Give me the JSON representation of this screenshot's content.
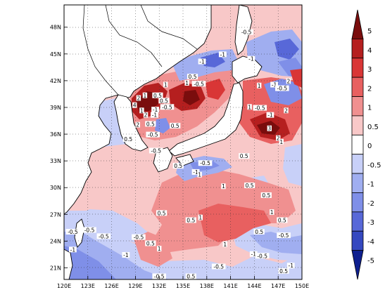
{
  "map": {
    "lon_ticks": [
      "120E",
      "123E",
      "126E",
      "129E",
      "132E",
      "135E",
      "138E",
      "141E",
      "144E",
      "147E",
      "150E"
    ],
    "lat_ticks": [
      "21N",
      "24N",
      "27N",
      "30N",
      "33N",
      "36N",
      "39N",
      "42N",
      "45N",
      "48N"
    ],
    "lon_range": [
      120,
      150
    ],
    "lat_range": [
      19.7,
      50.5
    ]
  },
  "colorbar": {
    "levels": [
      "5",
      "4",
      "3",
      "2",
      "1",
      "0.5",
      "0",
      "-0.5",
      "-1",
      "-2",
      "-3",
      "-4",
      "-5"
    ],
    "colors": [
      "#7a0d0d",
      "#b51f1f",
      "#d93636",
      "#e86060",
      "#f09090",
      "#f8c8c8",
      "#ffffff",
      "#c8d0f8",
      "#a0aef0",
      "#7f8fe8",
      "#5868d8",
      "#3548c0",
      "#0e1f8f"
    ]
  },
  "contour_labels": [
    {
      "text": "-0.5",
      "lon": 143.0,
      "lat": 47.3
    },
    {
      "text": "-1",
      "lon": 140.0,
      "lat": 44.8
    },
    {
      "text": "-1",
      "lon": 137.4,
      "lat": 44.0
    },
    {
      "text": "-1",
      "lon": 143.6,
      "lat": 44.3
    },
    {
      "text": "0.5",
      "lon": 136.2,
      "lat": 42.3
    },
    {
      "text": "1",
      "lon": 132.8,
      "lat": 41.4
    },
    {
      "text": "1",
      "lon": 135.5,
      "lat": 41.6
    },
    {
      "text": "-0.5",
      "lon": 137.0,
      "lat": 41.5
    },
    {
      "text": "1",
      "lon": 130.2,
      "lat": 40.2
    },
    {
      "text": "2",
      "lon": 129.4,
      "lat": 39.9
    },
    {
      "text": "0.5",
      "lon": 131.8,
      "lat": 40.2
    },
    {
      "text": "0.5",
      "lon": 132.6,
      "lat": 39.6
    },
    {
      "text": "-0.5",
      "lon": 133.0,
      "lat": 38.9
    },
    {
      "text": "-1",
      "lon": 131.5,
      "lat": 38.6
    },
    {
      "text": "4",
      "lon": 128.9,
      "lat": 39.1
    },
    {
      "text": "1",
      "lon": 129.8,
      "lat": 38.5
    },
    {
      "text": "2",
      "lon": 130.3,
      "lat": 38.0
    },
    {
      "text": "-1",
      "lon": 131.4,
      "lat": 38.0
    },
    {
      "text": "0.5",
      "lon": 130.9,
      "lat": 37.0
    },
    {
      "text": "0.5",
      "lon": 134.0,
      "lat": 36.8
    },
    {
      "text": "2",
      "lon": 129.3,
      "lat": 36.9
    },
    {
      "text": "-0.5",
      "lon": 131.2,
      "lat": 35.8
    },
    {
      "text": "0.5",
      "lon": 128.1,
      "lat": 35.3
    },
    {
      "text": "-0.5",
      "lon": 131.6,
      "lat": 34.0
    },
    {
      "text": "1",
      "lon": 144.6,
      "lat": 41.3
    },
    {
      "text": "-1",
      "lon": 146.5,
      "lat": 41.4
    },
    {
      "text": "2",
      "lon": 148.3,
      "lat": 41.8
    },
    {
      "text": "-0.5",
      "lon": 147.5,
      "lat": 41.0
    },
    {
      "text": "-0.5",
      "lon": 144.7,
      "lat": 38.8
    },
    {
      "text": "1",
      "lon": 143.4,
      "lat": 38.9
    },
    {
      "text": "-1",
      "lon": 146.0,
      "lat": 38.0
    },
    {
      "text": "2",
      "lon": 148.0,
      "lat": 38.5
    },
    {
      "text": "3",
      "lon": 145.9,
      "lat": 36.5
    },
    {
      "text": "2",
      "lon": 147.0,
      "lat": 35.4
    },
    {
      "text": "1",
      "lon": 147.4,
      "lat": 35.0
    },
    {
      "text": "0.5",
      "lon": 142.7,
      "lat": 33.4
    },
    {
      "text": "-0.5",
      "lon": 137.8,
      "lat": 32.6
    },
    {
      "text": "0.5",
      "lon": 134.4,
      "lat": 32.3
    },
    {
      "text": "-1",
      "lon": 136.6,
      "lat": 31.6
    },
    {
      "text": "1",
      "lon": 137.1,
      "lat": 31.3
    },
    {
      "text": "0.5",
      "lon": 143.4,
      "lat": 30.1
    },
    {
      "text": "1",
      "lon": 140.1,
      "lat": 30.0
    },
    {
      "text": "0.5",
      "lon": 145.5,
      "lat": 29.0
    },
    {
      "text": "1",
      "lon": 146.2,
      "lat": 27.1
    },
    {
      "text": "0.5",
      "lon": 132.3,
      "lat": 27.0
    },
    {
      "text": "0.5",
      "lon": 136.0,
      "lat": 26.2
    },
    {
      "text": "1",
      "lon": 137.2,
      "lat": 26.5
    },
    {
      "text": "0.5",
      "lon": 147.5,
      "lat": 26.2
    },
    {
      "text": "-0.5",
      "lon": 125.0,
      "lat": 24.4
    },
    {
      "text": "-0.5",
      "lon": 121.1,
      "lat": 24.9
    },
    {
      "text": "-0.5",
      "lon": 123.2,
      "lat": 25.1
    },
    {
      "text": "-0.5",
      "lon": 129.4,
      "lat": 24.3
    },
    {
      "text": "0.5",
      "lon": 130.9,
      "lat": 23.6
    },
    {
      "text": "1",
      "lon": 132.0,
      "lat": 23.0
    },
    {
      "text": "1",
      "lon": 140.3,
      "lat": 23.5
    },
    {
      "text": "0.5",
      "lon": 144.6,
      "lat": 24.9
    },
    {
      "text": "-0.5",
      "lon": 147.7,
      "lat": 24.5
    },
    {
      "text": "-1",
      "lon": 121.1,
      "lat": 22.9
    },
    {
      "text": "-1",
      "lon": 127.8,
      "lat": 22.3
    },
    {
      "text": "-0.5",
      "lon": 139.5,
      "lat": 21.0
    },
    {
      "text": "-1",
      "lon": 143.9,
      "lat": 22.4
    },
    {
      "text": "-0.5",
      "lon": 145.0,
      "lat": 22.2
    },
    {
      "text": "-1",
      "lon": 148.6,
      "lat": 21.1
    },
    {
      "text": "0.5",
      "lon": 147.7,
      "lat": 20.5
    },
    {
      "text": "-0.5",
      "lon": 132.0,
      "lat": 19.9
    },
    {
      "text": "0.5",
      "lon": 136.0,
      "lat": 19.9
    }
  ]
}
